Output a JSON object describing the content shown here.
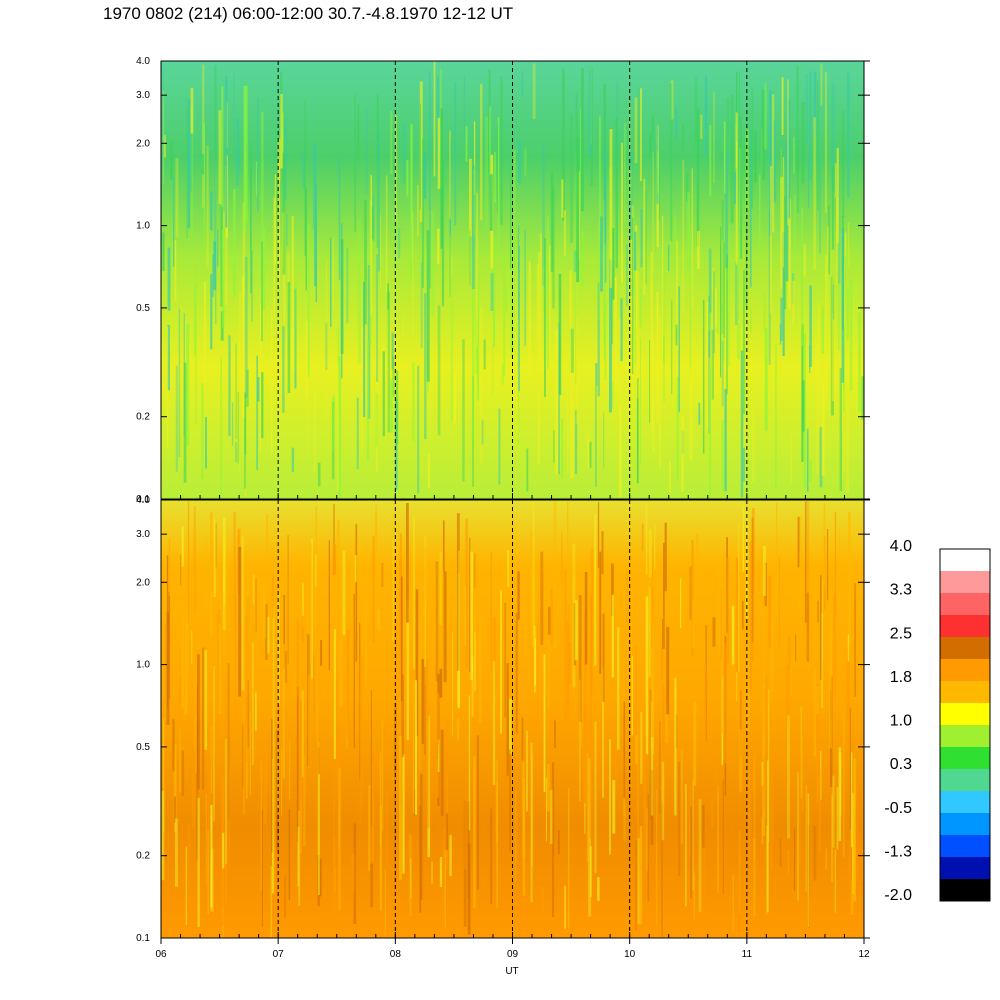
{
  "title": "1970 0802 (214) 06:00-12:00 30.7.-4.8.1970  12-12 UT",
  "chart_data": [
    {
      "type": "heatmap",
      "panel": "upper",
      "y_scale": "log",
      "ylim": [
        0.1,
        4.0
      ],
      "y_ticks": [
        "0.1",
        "0.2",
        "0.5",
        "1.0",
        "2.0",
        "3.0",
        "4.0"
      ],
      "xlim": [
        "06",
        "12"
      ],
      "x_ticks": [
        "06",
        "07",
        "08",
        "09",
        "10",
        "11",
        "12"
      ],
      "xlabel": "UT",
      "dominant_colors": [
        "#8df53a",
        "#f0f020",
        "#3ad25a",
        "#38c8a8"
      ],
      "dashed_hour_lines": true
    },
    {
      "type": "heatmap",
      "panel": "lower",
      "y_scale": "log",
      "ylim": [
        0.1,
        4.0
      ],
      "y_ticks": [
        "0.1",
        "0.2",
        "0.5",
        "1.0",
        "2.0",
        "3.0",
        "4.0"
      ],
      "xlim": [
        "06",
        "12"
      ],
      "x_ticks": [
        "06",
        "07",
        "08",
        "09",
        "10",
        "11",
        "12"
      ],
      "xlabel": "UT",
      "dominant_colors": [
        "#ff9a00",
        "#ffb800",
        "#d26e00",
        "#f0f020"
      ],
      "dashed_hour_lines": true
    }
  ],
  "colorbar": {
    "labels": [
      "4.0",
      "3.3",
      "2.5",
      "1.8",
      "1.0",
      "0.3",
      "-0.5",
      "-1.3",
      "-2.0"
    ],
    "colors": [
      "#ffffff",
      "#ff9a9a",
      "#ff6464",
      "#ff3030",
      "#d26e00",
      "#ff9a00",
      "#ffb800",
      "#ffff00",
      "#a0f030",
      "#30e030",
      "#50d890",
      "#30c8ff",
      "#0096ff",
      "#0050ff",
      "#0010b0",
      "#000000"
    ]
  },
  "x_axis_label": "UT"
}
